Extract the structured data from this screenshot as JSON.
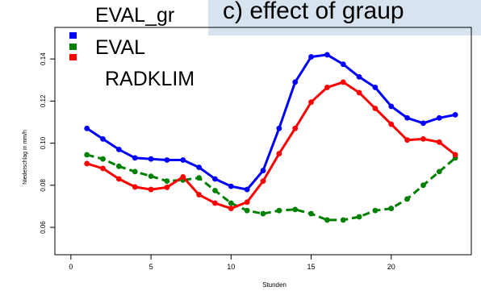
{
  "chart_data": {
    "type": "line",
    "title": "c) effect of graup",
    "xlabel": "Stunden",
    "ylabel": "Niederschlag in mm/h",
    "xlim": [
      -1,
      25
    ],
    "ylim": [
      0.047,
      0.155
    ],
    "x_ticks": [
      0,
      5,
      10,
      15,
      20
    ],
    "y_ticks": [
      0.06,
      0.08,
      0.1,
      0.12,
      0.14
    ],
    "x_tick_labels": [
      "0",
      "5",
      "10",
      "15",
      "20"
    ],
    "y_tick_labels": [
      "0.06",
      "0.08",
      "0.10",
      "0.12",
      "0.14"
    ],
    "legend_position": "top-left",
    "x": [
      1,
      2,
      3,
      4,
      5,
      6,
      7,
      8,
      9,
      10,
      11,
      12,
      13,
      14,
      15,
      16,
      17,
      18,
      19,
      20,
      21,
      22,
      23,
      24
    ],
    "series": [
      {
        "name": "EVAL_gr",
        "color": "#0000ff",
        "line_style": "solid",
        "values": [
          0.107,
          0.102,
          0.097,
          0.093,
          0.0925,
          0.092,
          0.092,
          0.0885,
          0.083,
          0.0795,
          0.078,
          0.087,
          0.107,
          0.129,
          0.141,
          0.142,
          0.1375,
          0.1315,
          0.1265,
          0.1175,
          0.112,
          0.1095,
          0.112,
          0.1135
        ]
      },
      {
        "name": "EVAL",
        "color": "#008000",
        "line_style": "dashed",
        "values": [
          0.0945,
          0.0925,
          0.089,
          0.0865,
          0.0843,
          0.082,
          0.0825,
          0.0835,
          0.0775,
          0.0715,
          0.068,
          0.0665,
          0.068,
          0.0685,
          0.0665,
          0.0635,
          0.0635,
          0.065,
          0.068,
          0.069,
          0.0735,
          0.08,
          0.0865,
          0.093
        ]
      },
      {
        "name": "RADKLIM",
        "color": "#ff0000",
        "line_style": "solid",
        "values": [
          0.0903,
          0.088,
          0.083,
          0.0792,
          0.078,
          0.079,
          0.084,
          0.0755,
          0.0715,
          0.069,
          0.072,
          0.082,
          0.095,
          0.107,
          0.1195,
          0.1265,
          0.129,
          0.124,
          0.1165,
          0.109,
          0.1015,
          0.102,
          0.1005,
          0.0945
        ]
      }
    ]
  }
}
